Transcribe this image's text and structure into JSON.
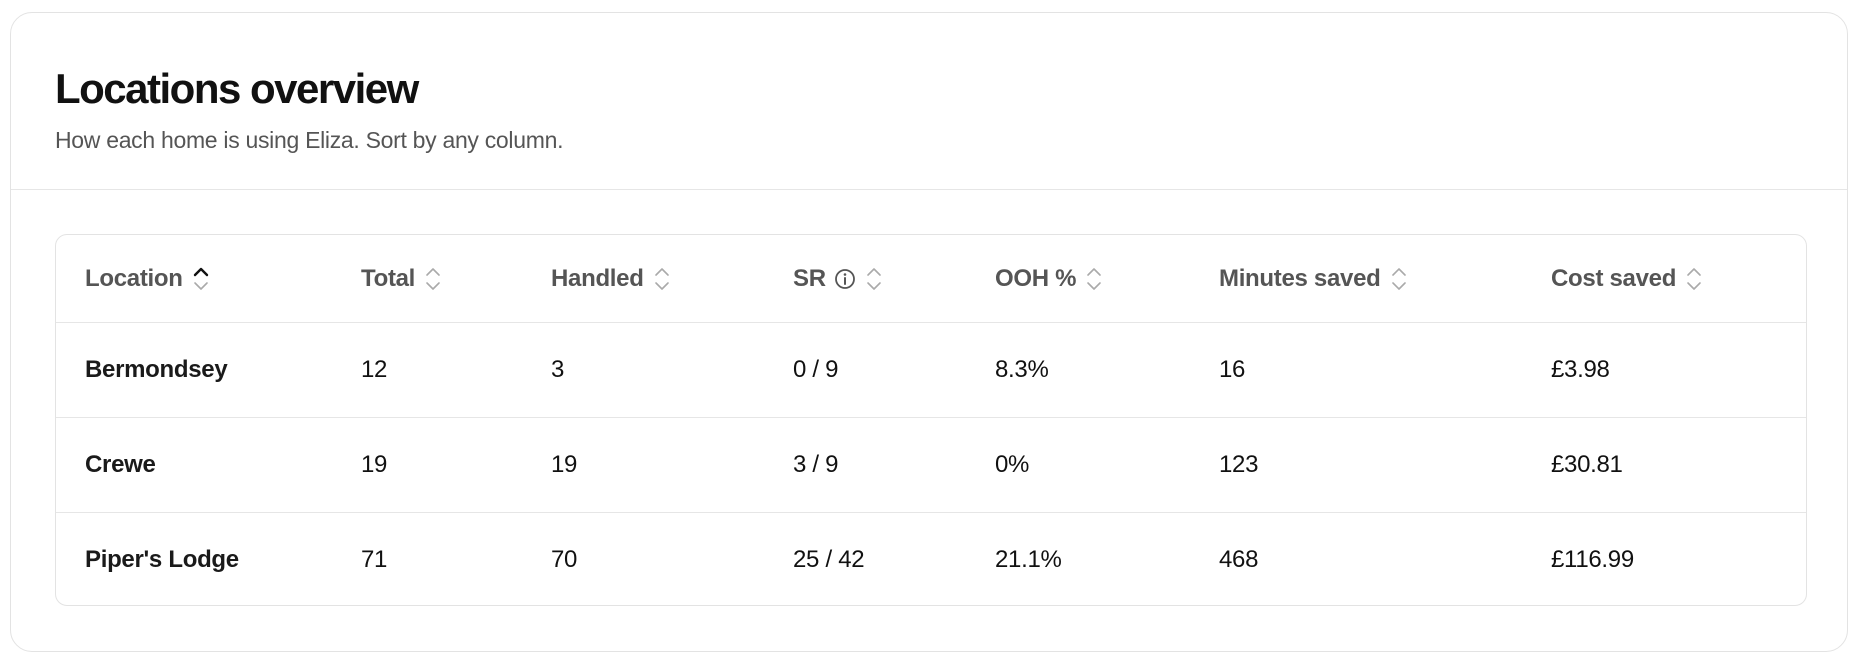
{
  "header": {
    "title": "Locations overview",
    "subtitle": "How each home is using Eliza. Sort by any column."
  },
  "table": {
    "columns": [
      "Location",
      "Total",
      "Handled",
      "SR",
      "OOH %",
      "Minutes saved",
      "Cost saved"
    ],
    "rows": [
      [
        "Bermondsey",
        "12",
        "3",
        "0 / 9",
        "8.3%",
        "16",
        "£3.98"
      ],
      [
        "Crewe",
        "19",
        "19",
        "3 / 9",
        "0%",
        "123",
        "£30.81"
      ],
      [
        "Piper's Lodge",
        "71",
        "70",
        "25 / 42",
        "21.1%",
        "468",
        "£116.99"
      ]
    ]
  }
}
